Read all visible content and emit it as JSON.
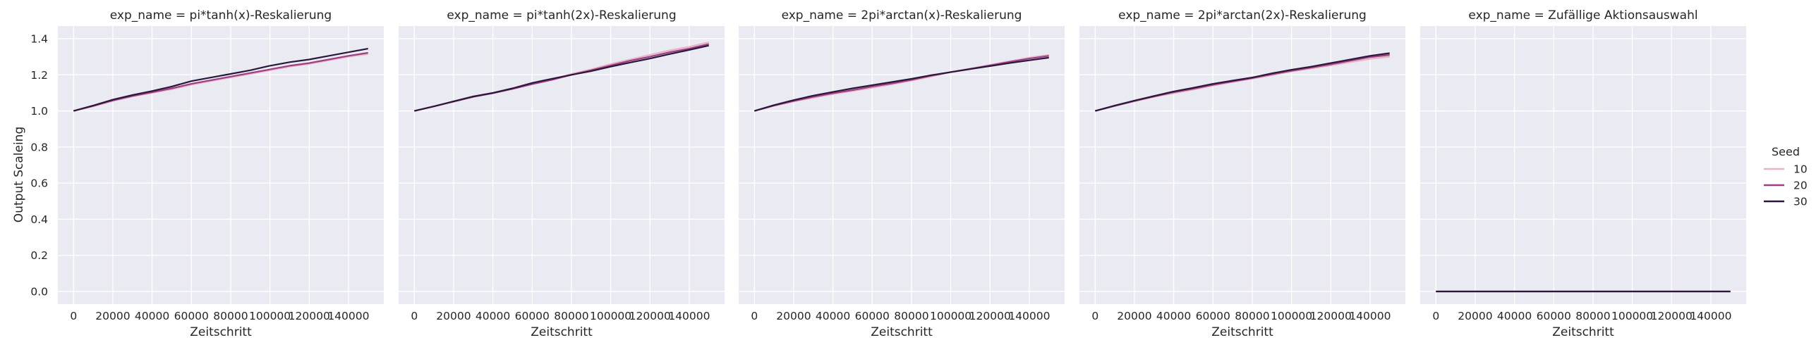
{
  "chart_data": {
    "type": "line",
    "facet_variable": "exp_name",
    "xlabel": "Zeitschritt",
    "ylabel": "Output Scaleing",
    "xlim": [
      -8000,
      158000
    ],
    "ylim": [
      -0.07,
      1.47
    ],
    "x_ticks": [
      0,
      20000,
      40000,
      60000,
      80000,
      100000,
      120000,
      140000
    ],
    "x_tick_labels": [
      "0",
      "20000",
      "40000",
      "60000",
      "80000",
      "100000",
      "120000",
      "140000"
    ],
    "y_ticks": [
      0.0,
      0.2,
      0.4,
      0.6,
      0.8,
      1.0,
      1.2,
      1.4
    ],
    "y_tick_labels": [
      "0.0",
      "0.2",
      "0.4",
      "0.6",
      "0.8",
      "1.0",
      "1.2",
      "1.4"
    ],
    "grid": true,
    "legend": {
      "title": "Seed",
      "placement": "right"
    },
    "colors": {
      "10": "#e8b4c4",
      "20": "#9c3d86",
      "30": "#2a1838"
    },
    "panels": [
      {
        "title": "exp_name = pi*tanh(x)-Reskalierung",
        "series": [
          {
            "name": "10",
            "x": [
              0,
              10000,
              20000,
              30000,
              40000,
              50000,
              60000,
              70000,
              80000,
              90000,
              100000,
              110000,
              120000,
              130000,
              140000,
              150000
            ],
            "y": [
              1.0,
              1.025,
              1.055,
              1.08,
              1.1,
              1.12,
              1.145,
              1.165,
              1.185,
              1.205,
              1.225,
              1.245,
              1.26,
              1.28,
              1.3,
              1.315
            ]
          },
          {
            "name": "20",
            "x": [
              0,
              10000,
              20000,
              30000,
              40000,
              50000,
              60000,
              70000,
              80000,
              90000,
              100000,
              110000,
              120000,
              130000,
              140000,
              150000
            ],
            "y": [
              1.0,
              1.028,
              1.058,
              1.083,
              1.103,
              1.125,
              1.15,
              1.17,
              1.19,
              1.21,
              1.23,
              1.25,
              1.265,
              1.285,
              1.305,
              1.322
            ]
          },
          {
            "name": "30",
            "x": [
              0,
              10000,
              20000,
              30000,
              40000,
              50000,
              60000,
              70000,
              80000,
              90000,
              100000,
              110000,
              120000,
              130000,
              140000,
              150000
            ],
            "y": [
              1.0,
              1.03,
              1.062,
              1.088,
              1.11,
              1.135,
              1.165,
              1.185,
              1.205,
              1.225,
              1.25,
              1.27,
              1.285,
              1.305,
              1.325,
              1.345
            ]
          }
        ]
      },
      {
        "title": "exp_name = pi*tanh(2x)-Reskalierung",
        "series": [
          {
            "name": "10",
            "x": [
              0,
              10000,
              20000,
              30000,
              40000,
              50000,
              60000,
              70000,
              80000,
              90000,
              100000,
              110000,
              120000,
              130000,
              140000,
              150000
            ],
            "y": [
              1.0,
              1.025,
              1.05,
              1.078,
              1.1,
              1.125,
              1.15,
              1.175,
              1.205,
              1.23,
              1.26,
              1.285,
              1.31,
              1.335,
              1.355,
              1.38
            ]
          },
          {
            "name": "20",
            "x": [
              0,
              10000,
              20000,
              30000,
              40000,
              50000,
              60000,
              70000,
              80000,
              90000,
              100000,
              110000,
              120000,
              130000,
              140000,
              150000
            ],
            "y": [
              1.0,
              1.025,
              1.052,
              1.078,
              1.098,
              1.122,
              1.148,
              1.172,
              1.2,
              1.225,
              1.252,
              1.278,
              1.3,
              1.325,
              1.345,
              1.37
            ]
          },
          {
            "name": "30",
            "x": [
              0,
              10000,
              20000,
              30000,
              40000,
              50000,
              60000,
              70000,
              80000,
              90000,
              100000,
              110000,
              120000,
              130000,
              140000,
              150000
            ],
            "y": [
              1.0,
              1.025,
              1.053,
              1.08,
              1.1,
              1.125,
              1.155,
              1.178,
              1.2,
              1.22,
              1.245,
              1.268,
              1.29,
              1.315,
              1.338,
              1.362
            ]
          }
        ]
      },
      {
        "title": "exp_name = 2pi*arctan(x)-Reskalierung",
        "series": [
          {
            "name": "10",
            "x": [
              0,
              10000,
              20000,
              30000,
              40000,
              50000,
              60000,
              70000,
              80000,
              90000,
              100000,
              110000,
              120000,
              130000,
              140000,
              150000
            ],
            "y": [
              1.0,
              1.028,
              1.052,
              1.073,
              1.093,
              1.11,
              1.128,
              1.147,
              1.168,
              1.19,
              1.215,
              1.235,
              1.255,
              1.275,
              1.295,
              1.31
            ]
          },
          {
            "name": "20",
            "x": [
              0,
              10000,
              20000,
              30000,
              40000,
              50000,
              60000,
              70000,
              80000,
              90000,
              100000,
              110000,
              120000,
              130000,
              140000,
              150000
            ],
            "y": [
              1.0,
              1.03,
              1.055,
              1.078,
              1.098,
              1.115,
              1.135,
              1.152,
              1.172,
              1.195,
              1.215,
              1.232,
              1.252,
              1.272,
              1.29,
              1.305
            ]
          },
          {
            "name": "30",
            "x": [
              0,
              10000,
              20000,
              30000,
              40000,
              50000,
              60000,
              70000,
              80000,
              90000,
              100000,
              110000,
              120000,
              130000,
              140000,
              150000
            ],
            "y": [
              1.0,
              1.032,
              1.06,
              1.085,
              1.105,
              1.125,
              1.143,
              1.16,
              1.178,
              1.198,
              1.215,
              1.232,
              1.248,
              1.265,
              1.28,
              1.295
            ]
          }
        ]
      },
      {
        "title": "exp_name = 2pi*arctan(2x)-Reskalierung",
        "series": [
          {
            "name": "10",
            "x": [
              0,
              10000,
              20000,
              30000,
              40000,
              50000,
              60000,
              70000,
              80000,
              90000,
              100000,
              110000,
              120000,
              130000,
              140000,
              150000
            ],
            "y": [
              1.0,
              1.028,
              1.053,
              1.078,
              1.098,
              1.118,
              1.14,
              1.16,
              1.178,
              1.198,
              1.218,
              1.235,
              1.252,
              1.27,
              1.288,
              1.3
            ]
          },
          {
            "name": "20",
            "x": [
              0,
              10000,
              20000,
              30000,
              40000,
              50000,
              60000,
              70000,
              80000,
              90000,
              100000,
              110000,
              120000,
              130000,
              140000,
              150000
            ],
            "y": [
              1.0,
              1.028,
              1.055,
              1.08,
              1.103,
              1.123,
              1.145,
              1.163,
              1.182,
              1.203,
              1.222,
              1.24,
              1.258,
              1.278,
              1.298,
              1.31
            ]
          },
          {
            "name": "30",
            "x": [
              0,
              10000,
              20000,
              30000,
              40000,
              50000,
              60000,
              70000,
              80000,
              90000,
              100000,
              110000,
              120000,
              130000,
              140000,
              150000
            ],
            "y": [
              1.0,
              1.03,
              1.057,
              1.083,
              1.108,
              1.128,
              1.15,
              1.168,
              1.185,
              1.208,
              1.228,
              1.245,
              1.265,
              1.285,
              1.305,
              1.32
            ]
          }
        ]
      },
      {
        "title": "exp_name = Zufällige Aktionsauswahl",
        "series": [
          {
            "name": "10",
            "x": [
              0,
              150000
            ],
            "y": [
              0.0,
              0.0
            ]
          },
          {
            "name": "20",
            "x": [
              0,
              150000
            ],
            "y": [
              0.0,
              0.0
            ]
          },
          {
            "name": "30",
            "x": [
              0,
              150000
            ],
            "y": [
              0.0,
              0.0
            ]
          }
        ]
      }
    ]
  }
}
